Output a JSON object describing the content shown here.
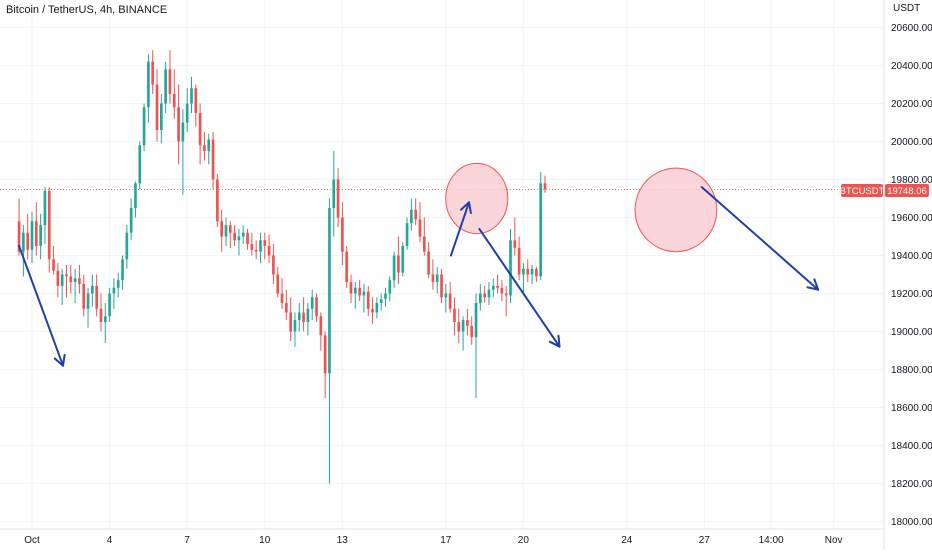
{
  "header": {
    "title": "Bitcoin / TetherUS, 4h, BINANCE"
  },
  "colors": {
    "up": "#26a69a",
    "down": "#ef5350",
    "arrow": "#1e3fae",
    "ellipse_fill": "#f8c8cf",
    "ellipse_stroke": "#ef5350",
    "grid": "#f0f3fa",
    "price_line": "#ef5350"
  },
  "chart_data": {
    "type": "candlestick",
    "title": "Bitcoin / TetherUS, 4h, BINANCE",
    "symbol": "BTCUSDT",
    "currency_label": "USDT",
    "last_price_label": "19748.06",
    "last_price": 19748.06,
    "ylim": [
      17950,
      20750
    ],
    "y_ticks": [
      "18000.00",
      "18200.00",
      "18400.00",
      "18600.00",
      "18800.00",
      "19000.00",
      "19200.00",
      "19400.00",
      "19600.00",
      "19800.00",
      "20000.00",
      "20200.00",
      "20400.00",
      "20600.00"
    ],
    "y_tick_values": [
      18000,
      18200,
      18400,
      18600,
      18800,
      19000,
      19200,
      19400,
      19600,
      19800,
      20000,
      20200,
      20400,
      20600
    ],
    "x_ticks": [
      {
        "label": "Oct",
        "day": 0
      },
      {
        "label": "4",
        "day": 3
      },
      {
        "label": "7",
        "day": 6
      },
      {
        "label": "10",
        "day": 9
      },
      {
        "label": "13",
        "day": 12
      },
      {
        "label": "17",
        "day": 16
      },
      {
        "label": "20",
        "day": 19
      },
      {
        "label": "24",
        "day": 23
      },
      {
        "label": "27",
        "day": 26
      },
      {
        "label": "14:00",
        "day": 28.58
      },
      {
        "label": "Nov",
        "day": 31
      }
    ],
    "candle_interval_days": 0.1667,
    "first_candle_day": -0.5,
    "candles": [
      [
        19580,
        19700,
        19400,
        19420
      ],
      [
        19420,
        19560,
        19290,
        19520
      ],
      [
        19520,
        19620,
        19380,
        19430
      ],
      [
        19430,
        19630,
        19360,
        19580
      ],
      [
        19580,
        19680,
        19400,
        19450
      ],
      [
        19450,
        19620,
        19380,
        19560
      ],
      [
        19560,
        19760,
        19460,
        19740
      ],
      [
        19740,
        19760,
        19310,
        19380
      ],
      [
        19380,
        19450,
        19300,
        19320
      ],
      [
        19320,
        19360,
        19180,
        19240
      ],
      [
        19240,
        19330,
        19140,
        19300
      ],
      [
        19300,
        19350,
        19180,
        19290
      ],
      [
        19290,
        19350,
        19200,
        19260
      ],
      [
        19260,
        19330,
        19150,
        19280
      ],
      [
        19280,
        19350,
        19200,
        19250
      ],
      [
        19250,
        19300,
        19080,
        19120
      ],
      [
        19120,
        19230,
        19020,
        19200
      ],
      [
        19200,
        19300,
        19130,
        19240
      ],
      [
        19240,
        19300,
        19080,
        19120
      ],
      [
        19120,
        19200,
        19000,
        19050
      ],
      [
        19050,
        19150,
        18940,
        19080
      ],
      [
        19080,
        19230,
        19050,
        19200
      ],
      [
        19200,
        19280,
        19120,
        19230
      ],
      [
        19230,
        19310,
        19180,
        19270
      ],
      [
        19270,
        19400,
        19220,
        19380
      ],
      [
        19380,
        19560,
        19330,
        19520
      ],
      [
        19520,
        19700,
        19480,
        19650
      ],
      [
        19650,
        19790,
        19600,
        19780
      ],
      [
        19780,
        20000,
        19750,
        19980
      ],
      [
        19980,
        20200,
        19950,
        20180
      ],
      [
        20180,
        20460,
        20100,
        20420
      ],
      [
        20420,
        20480,
        20250,
        20300
      ],
      [
        20300,
        20380,
        20000,
        20060
      ],
      [
        20060,
        20250,
        19990,
        20200
      ],
      [
        20200,
        20420,
        20150,
        20380
      ],
      [
        20380,
        20480,
        20200,
        20250
      ],
      [
        20250,
        20380,
        20120,
        20180
      ],
      [
        20180,
        20300,
        19880,
        20000
      ],
      [
        20000,
        20170,
        19720,
        20100
      ],
      [
        20100,
        20280,
        20050,
        20200
      ],
      [
        20200,
        20340,
        20150,
        20280
      ],
      [
        20280,
        20300,
        20080,
        20150
      ],
      [
        20150,
        20200,
        19880,
        19980
      ],
      [
        19980,
        20050,
        19900,
        19950
      ],
      [
        19950,
        20040,
        19880,
        20010
      ],
      [
        20010,
        20050,
        19750,
        19800
      ],
      [
        19800,
        19830,
        19550,
        19580
      ],
      [
        19580,
        19640,
        19420,
        19500
      ],
      [
        19500,
        19600,
        19450,
        19560
      ],
      [
        19560,
        19580,
        19440,
        19520
      ],
      [
        19520,
        19560,
        19450,
        19480
      ],
      [
        19480,
        19540,
        19400,
        19500
      ],
      [
        19500,
        19560,
        19460,
        19520
      ],
      [
        19520,
        19540,
        19430,
        19460
      ],
      [
        19460,
        19520,
        19400,
        19430
      ],
      [
        19430,
        19480,
        19380,
        19420
      ],
      [
        19420,
        19520,
        19360,
        19480
      ],
      [
        19480,
        19520,
        19380,
        19450
      ],
      [
        19450,
        19510,
        19360,
        19400
      ],
      [
        19400,
        19460,
        19250,
        19300
      ],
      [
        19300,
        19340,
        19180,
        19200
      ],
      [
        19200,
        19280,
        19120,
        19150
      ],
      [
        19150,
        19220,
        19060,
        19100
      ],
      [
        19100,
        19180,
        18950,
        19000
      ],
      [
        19000,
        19100,
        18920,
        19060
      ],
      [
        19060,
        19150,
        19000,
        19100
      ],
      [
        19100,
        19180,
        19000,
        19050
      ],
      [
        19050,
        19150,
        18980,
        19120
      ],
      [
        19120,
        19220,
        19060,
        19180
      ],
      [
        19180,
        19200,
        19050,
        19080
      ],
      [
        19080,
        19100,
        18900,
        18980
      ],
      [
        18980,
        19000,
        18650,
        18780
      ],
      [
        18780,
        19700,
        18200,
        19650
      ],
      [
        19650,
        19950,
        19500,
        19800
      ],
      [
        19800,
        19860,
        19550,
        19600
      ],
      [
        19600,
        19680,
        19350,
        19420
      ],
      [
        19420,
        19450,
        19230,
        19260
      ],
      [
        19260,
        19300,
        19150,
        19200
      ],
      [
        19200,
        19260,
        19120,
        19230
      ],
      [
        19230,
        19270,
        19160,
        19190
      ],
      [
        19190,
        19250,
        19100,
        19210
      ],
      [
        19210,
        19240,
        19080,
        19120
      ],
      [
        19120,
        19180,
        19040,
        19100
      ],
      [
        19100,
        19180,
        19070,
        19150
      ],
      [
        19150,
        19200,
        19110,
        19170
      ],
      [
        19170,
        19230,
        19130,
        19200
      ],
      [
        19200,
        19290,
        19160,
        19270
      ],
      [
        19270,
        19420,
        19230,
        19400
      ],
      [
        19400,
        19500,
        19250,
        19310
      ],
      [
        19310,
        19470,
        19290,
        19450
      ],
      [
        19450,
        19600,
        19430,
        19570
      ],
      [
        19570,
        19700,
        19530,
        19640
      ],
      [
        19640,
        19700,
        19560,
        19590
      ],
      [
        19590,
        19680,
        19470,
        19500
      ],
      [
        19500,
        19600,
        19400,
        19420
      ],
      [
        19420,
        19470,
        19280,
        19300
      ],
      [
        19300,
        19380,
        19220,
        19260
      ],
      [
        19260,
        19340,
        19200,
        19300
      ],
      [
        19300,
        19330,
        19150,
        19180
      ],
      [
        19180,
        19250,
        19100,
        19200
      ],
      [
        19200,
        19260,
        19100,
        19120
      ],
      [
        19120,
        19180,
        18980,
        19050
      ],
      [
        19050,
        19120,
        18940,
        19000
      ],
      [
        19000,
        19080,
        18900,
        19060
      ],
      [
        19060,
        19120,
        18980,
        19030
      ],
      [
        19030,
        19080,
        18930,
        18970
      ],
      [
        18970,
        19200,
        18650,
        19150
      ],
      [
        19150,
        19250,
        19110,
        19200
      ],
      [
        19200,
        19240,
        19150,
        19180
      ],
      [
        19180,
        19260,
        19140,
        19220
      ],
      [
        19220,
        19280,
        19180,
        19240
      ],
      [
        19240,
        19300,
        19200,
        19230
      ],
      [
        19230,
        19270,
        19160,
        19200
      ],
      [
        19200,
        19240,
        19080,
        19190
      ],
      [
        19190,
        19540,
        19150,
        19480
      ],
      [
        19480,
        19600,
        19400,
        19440
      ],
      [
        19440,
        19500,
        19270,
        19300
      ],
      [
        19300,
        19360,
        19200,
        19330
      ],
      [
        19330,
        19380,
        19260,
        19300
      ],
      [
        19300,
        19350,
        19250,
        19330
      ],
      [
        19330,
        19340,
        19260,
        19290
      ],
      [
        19290,
        19840,
        19270,
        19780
      ],
      [
        19780,
        19820,
        19730,
        19748
      ]
    ],
    "annotations": [
      {
        "type": "arrow",
        "from": [
          -0.5,
          19450
        ],
        "to": [
          1.2,
          18820
        ]
      },
      {
        "type": "arrow",
        "from": [
          16.2,
          19400
        ],
        "to": [
          16.9,
          19680
        ]
      },
      {
        "type": "arrow",
        "from": [
          17.3,
          19540
        ],
        "to": [
          20.4,
          18920
        ]
      },
      {
        "type": "arrow",
        "from": [
          25.9,
          19760
        ],
        "to": [
          30.4,
          19220
        ]
      },
      {
        "type": "ellipse",
        "center": [
          17.2,
          19700
        ],
        "rx_days": 1.2,
        "ry_price": 185
      },
      {
        "type": "ellipse",
        "center": [
          24.9,
          19640
        ],
        "rx_days": 1.58,
        "ry_price": 220
      }
    ]
  }
}
